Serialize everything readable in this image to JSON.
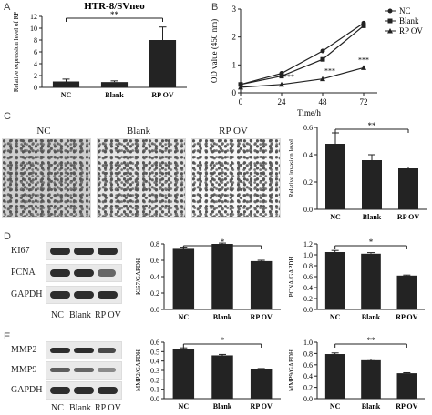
{
  "panel_letters": {
    "a": "A",
    "b": "B",
    "c": "C",
    "d": "D",
    "e": "E"
  },
  "groups": [
    "NC",
    "Blank",
    "RP OV"
  ],
  "blots": {
    "d": [
      "KI67",
      "PCNA",
      "GAPDH"
    ],
    "e": [
      "MMP2",
      "MMP9",
      "GAPDH"
    ]
  },
  "chart_data": [
    {
      "id": "a",
      "type": "bar",
      "title": "HTR-8/SVneo",
      "xlabel": "",
      "ylabel": "Relative expression level of RP",
      "categories": [
        "NC",
        "Blank",
        "RP OV"
      ],
      "values": [
        1.0,
        0.9,
        8.0
      ],
      "errors": [
        0.4,
        0.2,
        2.2
      ],
      "ylim": [
        0,
        12
      ],
      "yticks": [
        0,
        2,
        4,
        6,
        8,
        10,
        12
      ],
      "sig": "**"
    },
    {
      "id": "b",
      "type": "line",
      "title": "",
      "xlabel": "Time/h",
      "ylabel": "OD value (450 nm)",
      "x": [
        0,
        24,
        48,
        72
      ],
      "xlim": [
        0,
        80
      ],
      "ylim": [
        0,
        3
      ],
      "yticks": [
        0,
        1,
        2,
        3
      ],
      "series": [
        {
          "name": "NC",
          "marker": "circle",
          "values": [
            0.3,
            0.7,
            1.5,
            2.5
          ]
        },
        {
          "name": "Blank",
          "marker": "square",
          "values": [
            0.3,
            0.6,
            1.2,
            2.4
          ]
        },
        {
          "name": "RP OV",
          "marker": "triangle",
          "values": [
            0.2,
            0.3,
            0.5,
            0.9
          ]
        }
      ],
      "annotations": [
        "***",
        "***",
        "***"
      ]
    },
    {
      "id": "c",
      "type": "bar",
      "title": "",
      "xlabel": "",
      "ylabel": "Relative invasion level",
      "categories": [
        "NC",
        "Blank",
        "RP OV"
      ],
      "values": [
        0.48,
        0.36,
        0.3
      ],
      "errors": [
        0.08,
        0.04,
        0.01
      ],
      "ylim": [
        0,
        0.6
      ],
      "yticks": [
        "0.0",
        "0.2",
        "0.4",
        "0.6"
      ],
      "sig": "**"
    },
    {
      "id": "d1",
      "type": "bar",
      "title": "",
      "xlabel": "",
      "ylabel": "Ki67/GAPDH",
      "categories": [
        "NC",
        "Blank",
        "RP OV"
      ],
      "values": [
        0.74,
        0.8,
        0.59
      ],
      "errors": [
        0.02,
        0.01,
        0.01
      ],
      "ylim": [
        0,
        0.8
      ],
      "yticks": [
        "0.0",
        "0.2",
        "0.4",
        "0.6",
        "0.8"
      ],
      "sig": "*"
    },
    {
      "id": "d2",
      "type": "bar",
      "title": "",
      "xlabel": "",
      "ylabel": "PCNA/GAPDH",
      "categories": [
        "NC",
        "Blank",
        "RP OV"
      ],
      "values": [
        1.05,
        1.02,
        0.62
      ],
      "errors": [
        0.03,
        0.02,
        0.01
      ],
      "ylim": [
        0,
        1.2
      ],
      "yticks": [
        "0.0",
        "0.2",
        "0.4",
        "0.6",
        "0.8",
        "1.0",
        "1.2"
      ],
      "sig": "*"
    },
    {
      "id": "e1",
      "type": "bar",
      "title": "",
      "xlabel": "",
      "ylabel": "MMP2/GAPDH",
      "categories": [
        "NC",
        "Blank",
        "RP OV"
      ],
      "values": [
        0.53,
        0.46,
        0.31
      ],
      "errors": [
        0.01,
        0.01,
        0.01
      ],
      "ylim": [
        0,
        0.6
      ],
      "yticks": [
        "0.0",
        "0.1",
        "0.2",
        "0.3",
        "0.4",
        "0.5",
        "0.6"
      ],
      "sig": "*"
    },
    {
      "id": "e2",
      "type": "bar",
      "title": "",
      "xlabel": "",
      "ylabel": "MMP9/GAPDH",
      "categories": [
        "NC",
        "Blank",
        "RP OV"
      ],
      "values": [
        0.79,
        0.68,
        0.45
      ],
      "errors": [
        0.02,
        0.02,
        0.01
      ],
      "ylim": [
        0,
        1.0
      ],
      "yticks": [
        "0.0",
        "0.2",
        "0.4",
        "0.6",
        "0.8",
        "1.0"
      ],
      "sig": "**"
    }
  ]
}
